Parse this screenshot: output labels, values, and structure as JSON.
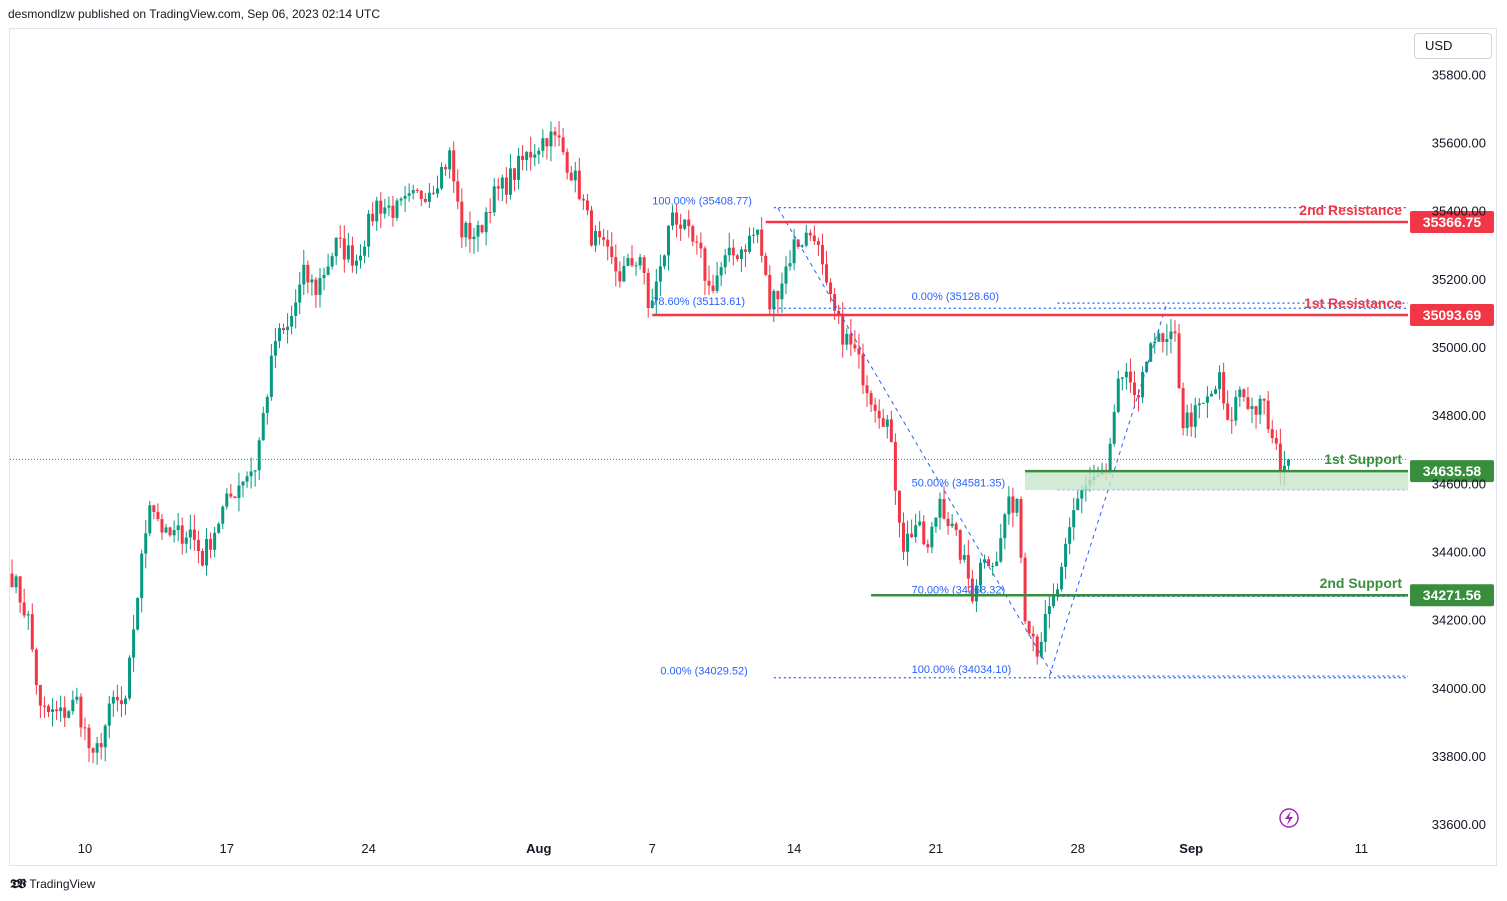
{
  "header": {
    "published": "desmondlzw published on TradingView.com, Sep 06, 2023 02:14 UTC"
  },
  "toolbar": {
    "currency": "USD"
  },
  "footer": {
    "brand": "TradingView",
    "logo_icon": "tradingview-logo-icon"
  },
  "colors": {
    "up": "#089981",
    "down": "#f23645",
    "resistance": "#f23645",
    "support": "#388e3c",
    "fib": "#2962ff",
    "zone_fill": "#c8e6c9"
  },
  "chart_data": {
    "type": "candlestick",
    "title": "",
    "ylim": [
      33480,
      35930
    ],
    "y_ticks": [
      33600,
      33800,
      34000,
      34200,
      34400,
      34600,
      34800,
      35000,
      35200,
      35400,
      35600,
      35800
    ],
    "y_tick_labels": [
      "33600.00",
      "33800.00",
      "34000.00",
      "34200.00",
      "34400.00",
      "34600.00",
      "34800.00",
      "35000.00",
      "35200.00",
      "35400.00",
      "35600.00",
      "35800.00"
    ],
    "x_ticks": [
      {
        "label": "10",
        "bar": 18
      },
      {
        "label": "17",
        "bar": 53
      },
      {
        "label": "24",
        "bar": 88
      },
      {
        "label": "Aug",
        "bar": 130
      },
      {
        "label": "7",
        "bar": 158
      },
      {
        "label": "14",
        "bar": 193
      },
      {
        "label": "21",
        "bar": 228
      },
      {
        "label": "28",
        "bar": 263
      },
      {
        "label": "Sep",
        "bar": 291
      },
      {
        "label": "11",
        "bar": 333
      }
    ],
    "bars_visible": 345,
    "last_price": 34670,
    "key_points": [
      [
        0,
        34330
      ],
      [
        4,
        34200
      ],
      [
        7,
        33930
      ],
      [
        12,
        33920
      ],
      [
        16,
        33960
      ],
      [
        20,
        33780
      ],
      [
        25,
        33960
      ],
      [
        28,
        33940
      ],
      [
        30,
        34180
      ],
      [
        34,
        34560
      ],
      [
        38,
        34440
      ],
      [
        44,
        34460
      ],
      [
        47,
        34380
      ],
      [
        52,
        34520
      ],
      [
        57,
        34620
      ],
      [
        60,
        34650
      ],
      [
        65,
        35020
      ],
      [
        68,
        35050
      ],
      [
        72,
        35210
      ],
      [
        75,
        35170
      ],
      [
        80,
        35300
      ],
      [
        85,
        35260
      ],
      [
        90,
        35420
      ],
      [
        95,
        35400
      ],
      [
        100,
        35440
      ],
      [
        104,
        35480
      ],
      [
        108,
        35560
      ],
      [
        111,
        35340
      ],
      [
        115,
        35330
      ],
      [
        118,
        35430
      ],
      [
        122,
        35480
      ],
      [
        127,
        35560
      ],
      [
        132,
        35620
      ],
      [
        135,
        35600
      ],
      [
        140,
        35460
      ],
      [
        143,
        35330
      ],
      [
        146,
        35280
      ],
      [
        150,
        35210
      ],
      [
        155,
        35270
      ],
      [
        157,
        35110
      ],
      [
        160,
        35220
      ],
      [
        163,
        35400
      ],
      [
        166,
        35340
      ],
      [
        170,
        35260
      ],
      [
        172,
        35170
      ],
      [
        176,
        35250
      ],
      [
        180,
        35290
      ],
      [
        184,
        35340
      ],
      [
        187,
        35120
      ],
      [
        190,
        35200
      ],
      [
        193,
        35300
      ],
      [
        198,
        35340
      ],
      [
        201,
        35160
      ],
      [
        204,
        35060
      ],
      [
        208,
        34980
      ],
      [
        212,
        34860
      ],
      [
        216,
        34780
      ],
      [
        220,
        34420
      ],
      [
        223,
        34480
      ],
      [
        226,
        34400
      ],
      [
        229,
        34560
      ],
      [
        232,
        34460
      ],
      [
        234,
        34400
      ],
      [
        237,
        34280
      ],
      [
        240,
        34400
      ],
      [
        243,
        34360
      ],
      [
        245,
        34510
      ],
      [
        248,
        34560
      ],
      [
        250,
        34230
      ],
      [
        253,
        34120
      ],
      [
        256,
        34220
      ],
      [
        259,
        34330
      ],
      [
        262,
        34510
      ],
      [
        264,
        34590
      ],
      [
        267,
        34620
      ],
      [
        270,
        34620
      ],
      [
        273,
        34880
      ],
      [
        276,
        34900
      ],
      [
        278,
        34820
      ],
      [
        281,
        35040
      ],
      [
        284,
        35000
      ],
      [
        287,
        35020
      ],
      [
        289,
        34780
      ],
      [
        292,
        34800
      ],
      [
        295,
        34840
      ],
      [
        298,
        34900
      ],
      [
        300,
        34760
      ],
      [
        303,
        34880
      ],
      [
        306,
        34820
      ],
      [
        309,
        34820
      ],
      [
        311,
        34720
      ],
      [
        313,
        34660
      ],
      [
        315,
        34670
      ]
    ],
    "levels": [
      {
        "name": "2nd Resistance",
        "value": 35366.75,
        "label": "35366.75",
        "kind": "resistance",
        "from_bar": 186
      },
      {
        "name": "1st Resistance",
        "value": 35093.69,
        "label": "35093.69",
        "kind": "resistance",
        "from_bar": 158
      },
      {
        "name": "1st Support",
        "value": 34635.58,
        "label": "34635.58",
        "kind": "support",
        "from_bar": 250,
        "zone_bottom": 34580
      },
      {
        "name": "2nd Support",
        "value": 34271.56,
        "label": "34271.56",
        "kind": "support",
        "from_bar": 212
      }
    ],
    "fib_lines": [
      {
        "text": "100.00% (35408.77)",
        "value": 35408.77,
        "from_bar": 188,
        "label_bar": 158
      },
      {
        "text": "78.60% (35113.61)",
        "value": 35113.61,
        "from_bar": 188,
        "label_bar": 158
      },
      {
        "text": "0.00% (35128.60)",
        "value": 35128.6,
        "from_bar": 258,
        "label_bar": 222
      },
      {
        "text": "50.00% (34581.35)",
        "value": 34581.35,
        "from_bar": 258,
        "label_bar": 222
      },
      {
        "text": "70.00% (34268.32)",
        "value": 34268.32,
        "from_bar": 258,
        "label_bar": 222
      },
      {
        "text": "100.00% (34034.10)",
        "value": 34034.1,
        "from_bar": 258,
        "label_bar": 222
      },
      {
        "text": "0.00% (34029.52)",
        "value": 34029.52,
        "from_bar": 188,
        "label_bar": 160
      }
    ],
    "fib_trend_1": [
      [
        189,
        35408
      ],
      [
        257,
        34034
      ]
    ],
    "fib_trend_2": [
      [
        256,
        34034
      ],
      [
        285,
        35128
      ]
    ]
  }
}
